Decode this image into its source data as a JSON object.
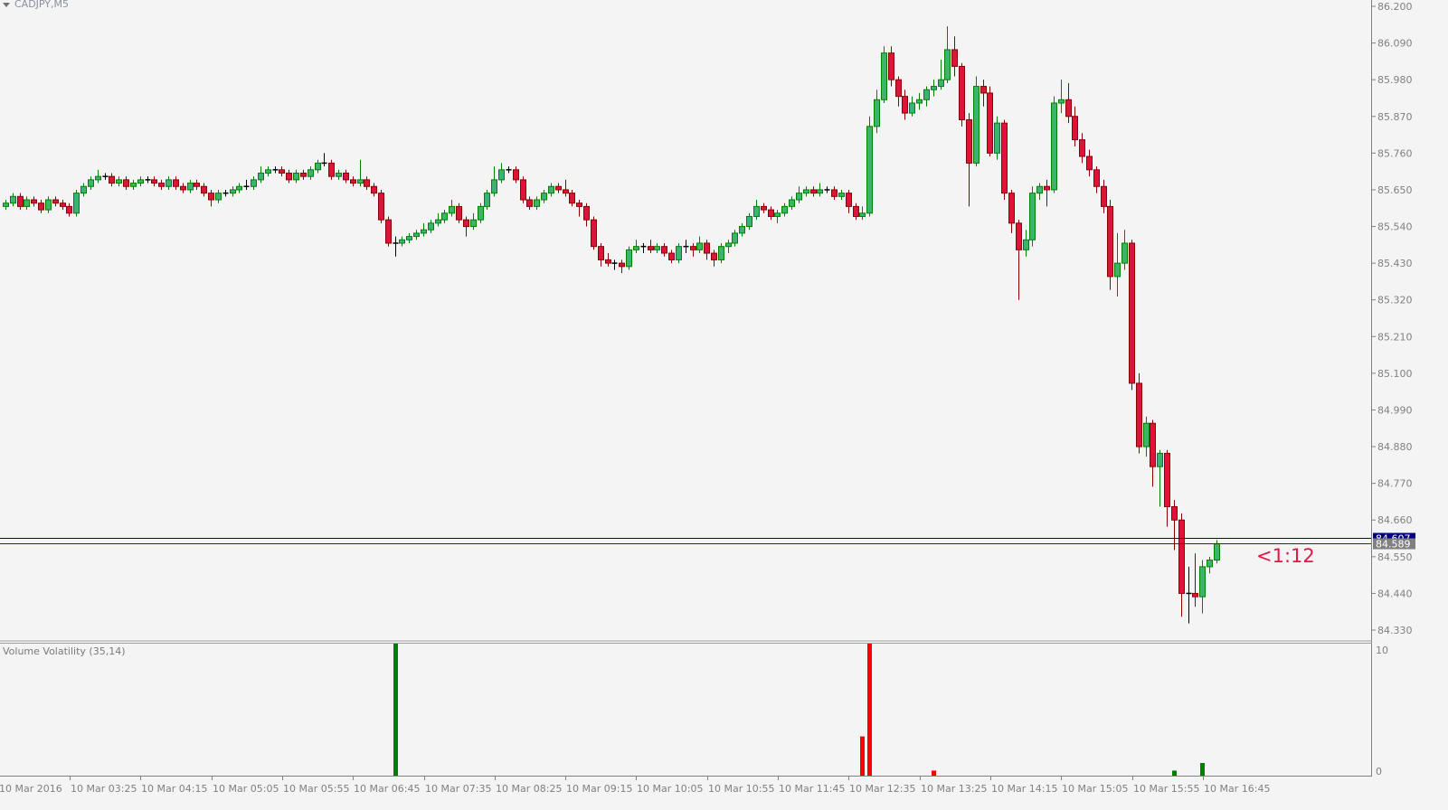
{
  "header": {
    "symbol_title": "CADJPY,M5",
    "menu_icon": "triangle-down-icon"
  },
  "indicator": {
    "title": "Volume Volatility (35,14)",
    "axis_labels": [
      "10",
      "0"
    ]
  },
  "timer_label": "<1:12",
  "colors": {
    "bull_fill": "#3cb371",
    "bull_border": "#008000",
    "bear_fill": "#dc143c",
    "bear_border": "#8b0000",
    "doji": "#000000",
    "ask_line": "#000080",
    "bid_line": "#8b0000",
    "vol_up": "#008000",
    "vol_down": "#ff0000",
    "background": "#f4f4f4"
  },
  "chart_data": [
    {
      "type": "candlestick",
      "title": "CADJPY,M5",
      "ylim": [
        84.33,
        86.2
      ],
      "y_ticks": [
        "86.200",
        "86.090",
        "85.980",
        "85.870",
        "85.760",
        "85.650",
        "85.540",
        "85.430",
        "85.320",
        "85.210",
        "85.100",
        "84.990",
        "84.880",
        "84.770",
        "84.660",
        "84.550",
        "84.440",
        "84.330"
      ],
      "x_ticks": [
        "10 Mar 2016",
        "10 Mar 03:25",
        "10 Mar 04:15",
        "10 Mar 05:05",
        "10 Mar 05:55",
        "10 Mar 06:45",
        "10 Mar 07:35",
        "10 Mar 08:25",
        "10 Mar 09:15",
        "10 Mar 10:05",
        "10 Mar 10:55",
        "10 Mar 11:45",
        "10 Mar 12:35",
        "10 Mar 13:25",
        "10 Mar 14:15",
        "10 Mar 15:05",
        "10 Mar 15:55",
        "10 Mar 16:45"
      ],
      "price_lines": [
        {
          "label": "84.607",
          "value": 84.607,
          "kind": "ask"
        },
        {
          "label": "84.589",
          "value": 84.589,
          "kind": "bid"
        }
      ],
      "grid": false,
      "ohlc": [
        [
          85.6,
          85.62,
          85.59,
          85.61
        ],
        [
          85.61,
          85.64,
          85.6,
          85.63
        ],
        [
          85.63,
          85.64,
          85.59,
          85.6
        ],
        [
          85.6,
          85.63,
          85.59,
          85.62
        ],
        [
          85.62,
          85.63,
          85.6,
          85.61
        ],
        [
          85.61,
          85.62,
          85.58,
          85.59
        ],
        [
          85.59,
          85.63,
          85.58,
          85.62
        ],
        [
          85.62,
          85.63,
          85.6,
          85.61
        ],
        [
          85.61,
          85.62,
          85.59,
          85.6
        ],
        [
          85.6,
          85.61,
          85.57,
          85.58
        ],
        [
          85.58,
          85.65,
          85.57,
          85.64
        ],
        [
          85.64,
          85.67,
          85.63,
          85.66
        ],
        [
          85.66,
          85.69,
          85.65,
          85.68
        ],
        [
          85.68,
          85.71,
          85.67,
          85.69
        ],
        [
          85.69,
          85.7,
          85.68,
          85.69
        ],
        [
          85.69,
          85.7,
          85.66,
          85.67
        ],
        [
          85.67,
          85.69,
          85.66,
          85.68
        ],
        [
          85.68,
          85.69,
          85.65,
          85.66
        ],
        [
          85.66,
          85.68,
          85.65,
          85.67
        ],
        [
          85.67,
          85.69,
          85.66,
          85.68
        ],
        [
          85.68,
          85.69,
          85.67,
          85.68
        ],
        [
          85.68,
          85.69,
          85.66,
          85.67
        ],
        [
          85.67,
          85.68,
          85.65,
          85.66
        ],
        [
          85.66,
          85.69,
          85.65,
          85.68
        ],
        [
          85.68,
          85.69,
          85.65,
          85.66
        ],
        [
          85.66,
          85.67,
          85.64,
          85.65
        ],
        [
          85.65,
          85.68,
          85.64,
          85.67
        ],
        [
          85.67,
          85.68,
          85.65,
          85.66
        ],
        [
          85.66,
          85.67,
          85.63,
          85.64
        ],
        [
          85.64,
          85.65,
          85.6,
          85.62
        ],
        [
          85.62,
          85.65,
          85.61,
          85.64
        ],
        [
          85.64,
          85.65,
          85.63,
          85.64
        ],
        [
          85.64,
          85.66,
          85.63,
          85.65
        ],
        [
          85.65,
          85.67,
          85.64,
          85.66
        ],
        [
          85.66,
          85.68,
          85.65,
          85.66
        ],
        [
          85.66,
          85.69,
          85.65,
          85.68
        ],
        [
          85.68,
          85.72,
          85.67,
          85.7
        ],
        [
          85.7,
          85.72,
          85.69,
          85.71
        ],
        [
          85.71,
          85.72,
          85.7,
          85.71
        ],
        [
          85.71,
          85.72,
          85.69,
          85.7
        ],
        [
          85.7,
          85.71,
          85.67,
          85.68
        ],
        [
          85.68,
          85.71,
          85.67,
          85.7
        ],
        [
          85.7,
          85.71,
          85.68,
          85.69
        ],
        [
          85.69,
          85.72,
          85.68,
          85.71
        ],
        [
          85.71,
          85.74,
          85.7,
          85.73
        ],
        [
          85.73,
          85.76,
          85.72,
          85.73
        ],
        [
          85.73,
          85.74,
          85.68,
          85.69
        ],
        [
          85.69,
          85.71,
          85.68,
          85.7
        ],
        [
          85.7,
          85.71,
          85.67,
          85.68
        ],
        [
          85.68,
          85.69,
          85.66,
          85.67
        ],
        [
          85.67,
          85.74,
          85.66,
          85.68
        ],
        [
          85.68,
          85.69,
          85.65,
          85.66
        ],
        [
          85.66,
          85.67,
          85.63,
          85.64
        ],
        [
          85.64,
          85.65,
          85.55,
          85.56
        ],
        [
          85.56,
          85.57,
          85.48,
          85.49
        ],
        [
          85.49,
          85.51,
          85.45,
          85.49
        ],
        [
          85.49,
          85.51,
          85.48,
          85.5
        ],
        [
          85.5,
          85.52,
          85.49,
          85.51
        ],
        [
          85.51,
          85.53,
          85.5,
          85.52
        ],
        [
          85.52,
          85.55,
          85.51,
          85.53
        ],
        [
          85.53,
          85.56,
          85.52,
          85.55
        ],
        [
          85.55,
          85.58,
          85.54,
          85.56
        ],
        [
          85.56,
          85.59,
          85.55,
          85.58
        ],
        [
          85.58,
          85.62,
          85.57,
          85.6
        ],
        [
          85.6,
          85.61,
          85.55,
          85.56
        ],
        [
          85.56,
          85.57,
          85.51,
          85.54
        ],
        [
          85.54,
          85.58,
          85.53,
          85.56
        ],
        [
          85.56,
          85.61,
          85.55,
          85.6
        ],
        [
          85.6,
          85.65,
          85.59,
          85.64
        ],
        [
          85.64,
          85.72,
          85.63,
          85.68
        ],
        [
          85.68,
          85.73,
          85.67,
          85.71
        ],
        [
          85.71,
          85.72,
          85.7,
          85.71
        ],
        [
          85.71,
          85.72,
          85.67,
          85.68
        ],
        [
          85.68,
          85.69,
          85.61,
          85.62
        ],
        [
          85.62,
          85.63,
          85.59,
          85.6
        ],
        [
          85.6,
          85.63,
          85.59,
          85.62
        ],
        [
          85.62,
          85.65,
          85.61,
          85.64
        ],
        [
          85.64,
          85.67,
          85.63,
          85.66
        ],
        [
          85.66,
          85.67,
          85.64,
          85.65
        ],
        [
          85.65,
          85.68,
          85.63,
          85.64
        ],
        [
          85.64,
          85.65,
          85.6,
          85.61
        ],
        [
          85.61,
          85.62,
          85.57,
          85.6
        ],
        [
          85.6,
          85.61,
          85.54,
          85.56
        ],
        [
          85.56,
          85.57,
          85.47,
          85.48
        ],
        [
          85.48,
          85.49,
          85.42,
          85.44
        ],
        [
          85.44,
          85.46,
          85.42,
          85.43
        ],
        [
          85.43,
          85.44,
          85.41,
          85.43
        ],
        [
          85.43,
          85.44,
          85.4,
          85.42
        ],
        [
          85.42,
          85.48,
          85.41,
          85.47
        ],
        [
          85.47,
          85.5,
          85.46,
          85.48
        ],
        [
          85.48,
          85.49,
          85.46,
          85.48
        ],
        [
          85.48,
          85.5,
          85.46,
          85.47
        ],
        [
          85.47,
          85.49,
          85.46,
          85.48
        ],
        [
          85.48,
          85.49,
          85.45,
          85.46
        ],
        [
          85.46,
          85.47,
          85.43,
          85.44
        ],
        [
          85.44,
          85.49,
          85.43,
          85.48
        ],
        [
          85.48,
          85.5,
          85.46,
          85.48
        ],
        [
          85.48,
          85.49,
          85.45,
          85.47
        ],
        [
          85.47,
          85.51,
          85.46,
          85.49
        ],
        [
          85.49,
          85.5,
          85.44,
          85.46
        ],
        [
          85.46,
          85.47,
          85.42,
          85.44
        ],
        [
          85.44,
          85.49,
          85.43,
          85.48
        ],
        [
          85.48,
          85.5,
          85.46,
          85.49
        ],
        [
          85.49,
          85.53,
          85.48,
          85.52
        ],
        [
          85.52,
          85.55,
          85.51,
          85.54
        ],
        [
          85.54,
          85.58,
          85.53,
          85.57
        ],
        [
          85.57,
          85.62,
          85.56,
          85.6
        ],
        [
          85.6,
          85.61,
          85.58,
          85.59
        ],
        [
          85.59,
          85.6,
          85.56,
          85.57
        ],
        [
          85.57,
          85.59,
          85.55,
          85.58
        ],
        [
          85.58,
          85.61,
          85.57,
          85.6
        ],
        [
          85.6,
          85.63,
          85.59,
          85.62
        ],
        [
          85.62,
          85.66,
          85.61,
          85.64
        ],
        [
          85.64,
          85.66,
          85.63,
          85.65
        ],
        [
          85.65,
          85.66,
          85.63,
          85.64
        ],
        [
          85.64,
          85.67,
          85.63,
          85.65
        ],
        [
          85.65,
          85.66,
          85.64,
          85.65
        ],
        [
          85.65,
          85.66,
          85.62,
          85.63
        ],
        [
          85.63,
          85.65,
          85.62,
          85.64
        ],
        [
          85.64,
          85.65,
          85.58,
          85.6
        ],
        [
          85.6,
          85.61,
          85.56,
          85.57
        ],
        [
          85.57,
          85.6,
          85.56,
          85.58
        ],
        [
          85.58,
          85.87,
          85.57,
          85.84
        ],
        [
          85.84,
          85.95,
          85.82,
          85.92
        ],
        [
          85.92,
          86.08,
          85.91,
          86.06
        ],
        [
          86.06,
          86.08,
          85.96,
          85.98
        ],
        [
          85.98,
          85.99,
          85.9,
          85.93
        ],
        [
          85.93,
          85.95,
          85.86,
          85.88
        ],
        [
          85.88,
          85.93,
          85.87,
          85.91
        ],
        [
          85.91,
          85.94,
          85.89,
          85.92
        ],
        [
          85.92,
          85.96,
          85.9,
          85.95
        ],
        [
          85.95,
          85.98,
          85.93,
          85.96
        ],
        [
          85.96,
          86.04,
          85.95,
          85.98
        ],
        [
          85.98,
          86.14,
          85.97,
          86.07
        ],
        [
          86.07,
          86.11,
          85.99,
          86.02
        ],
        [
          86.02,
          86.03,
          85.84,
          85.86
        ],
        [
          85.86,
          85.88,
          85.6,
          85.73
        ],
        [
          85.73,
          85.99,
          85.72,
          85.96
        ],
        [
          85.96,
          85.98,
          85.9,
          85.94
        ],
        [
          85.94,
          85.96,
          85.75,
          85.76
        ],
        [
          85.76,
          85.87,
          85.74,
          85.85
        ],
        [
          85.85,
          85.86,
          85.62,
          85.64
        ],
        [
          85.64,
          85.65,
          85.52,
          85.55
        ],
        [
          85.55,
          85.56,
          85.32,
          85.47
        ],
        [
          85.47,
          85.53,
          85.45,
          85.5
        ],
        [
          85.5,
          85.66,
          85.48,
          85.64
        ],
        [
          85.64,
          85.67,
          85.62,
          85.66
        ],
        [
          85.66,
          85.68,
          85.6,
          85.65
        ],
        [
          85.65,
          85.93,
          85.64,
          85.91
        ],
        [
          85.91,
          85.98,
          85.88,
          85.92
        ],
        [
          85.92,
          85.97,
          85.85,
          85.87
        ],
        [
          85.87,
          85.9,
          85.78,
          85.8
        ],
        [
          85.8,
          85.82,
          85.73,
          85.75
        ],
        [
          85.75,
          85.77,
          85.69,
          85.71
        ],
        [
          85.71,
          85.72,
          85.64,
          85.66
        ],
        [
          85.66,
          85.68,
          85.58,
          85.6
        ],
        [
          85.6,
          85.62,
          85.35,
          85.39
        ],
        [
          85.39,
          85.52,
          85.33,
          85.43
        ],
        [
          85.43,
          85.53,
          85.41,
          85.49
        ],
        [
          85.49,
          85.5,
          85.05,
          85.07
        ],
        [
          85.07,
          85.1,
          84.86,
          84.88
        ],
        [
          84.88,
          84.97,
          84.85,
          84.95
        ],
        [
          84.95,
          84.96,
          84.76,
          84.82
        ],
        [
          84.82,
          84.87,
          84.7,
          84.86
        ],
        [
          84.86,
          84.87,
          84.64,
          84.7
        ],
        [
          84.7,
          84.72,
          84.57,
          84.66
        ],
        [
          84.66,
          84.68,
          84.37,
          84.44
        ],
        [
          84.44,
          84.52,
          84.35,
          84.44
        ],
        [
          84.44,
          84.56,
          84.4,
          84.43
        ],
        [
          84.43,
          84.54,
          84.38,
          84.52
        ],
        [
          84.52,
          84.55,
          84.5,
          84.54
        ],
        [
          84.54,
          84.6,
          84.53,
          84.589
        ]
      ]
    },
    {
      "type": "bar",
      "title": "Volume Volatility (35,14)",
      "ylim": [
        0,
        10
      ],
      "bars": [
        {
          "index": 55,
          "value": 10.5,
          "direction": "up"
        },
        {
          "index": 121,
          "value": 3.1,
          "direction": "down"
        },
        {
          "index": 122,
          "value": 10.5,
          "direction": "down"
        },
        {
          "index": 131,
          "value": 0.4,
          "direction": "down"
        },
        {
          "index": 165,
          "value": 0.4,
          "direction": "up"
        },
        {
          "index": 169,
          "value": 1.0,
          "direction": "up"
        }
      ]
    }
  ]
}
